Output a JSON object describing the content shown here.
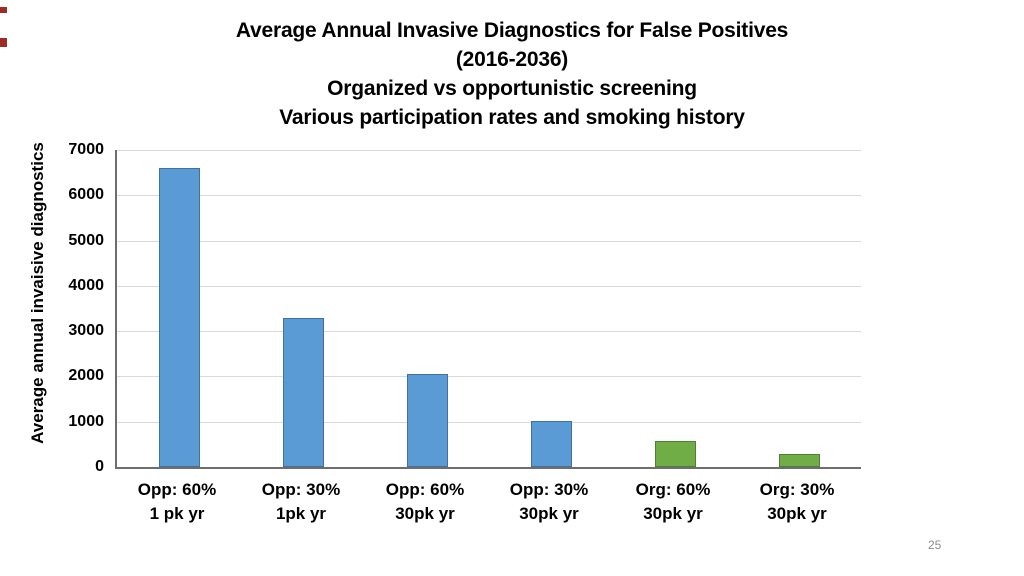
{
  "page": {
    "number": "25",
    "background": "#FFFFFF"
  },
  "colors": {
    "gridline": "#D9D9D9",
    "axis_line": "#6E6E6E",
    "text": "#000000",
    "page_number": "#8C8C8C",
    "edge_mark": "#9E2B25",
    "blue_bar": "#5B9BD5",
    "blue_bar_border": "#41719C",
    "green_bar": "#70AD47",
    "green_bar_border": "#507E32"
  },
  "chart_data": {
    "type": "bar",
    "title": "Average Annual Invasive Diagnostics for False Positives (2016-2036) Organized vs opportunistic screening Various participation rates and smoking history",
    "title_lines": [
      "Average Annual Invasive Diagnostics for False Positives",
      "(2016-2036)",
      "Organized vs opportunistic screening",
      "Various participation rates and smoking history"
    ],
    "ylabel": "Average annual invaisive diagnostics",
    "xlabel": "",
    "ylim": [
      0,
      7000
    ],
    "ytick_interval": 1000,
    "yticks": [
      0,
      1000,
      2000,
      3000,
      4000,
      5000,
      6000,
      7000
    ],
    "grid": true,
    "legend": false,
    "categories": [
      [
        "Opp: 60%",
        "1 pk yr"
      ],
      [
        "Opp: 30%",
        "1pk yr"
      ],
      [
        "Opp: 60%",
        "30pk yr"
      ],
      [
        "Opp: 30%",
        "30pk yr"
      ],
      [
        "Org: 60%",
        "30pk yr"
      ],
      [
        "Org: 30%",
        "30pk yr"
      ]
    ],
    "values": [
      6600,
      3300,
      2050,
      1020,
      580,
      290
    ],
    "bar_colors": [
      "#5B9BD5",
      "#5B9BD5",
      "#5B9BD5",
      "#5B9BD5",
      "#70AD47",
      "#70AD47"
    ],
    "bar_border_colors": [
      "#41719C",
      "#41719C",
      "#41719C",
      "#41719C",
      "#507E32",
      "#507E32"
    ]
  }
}
